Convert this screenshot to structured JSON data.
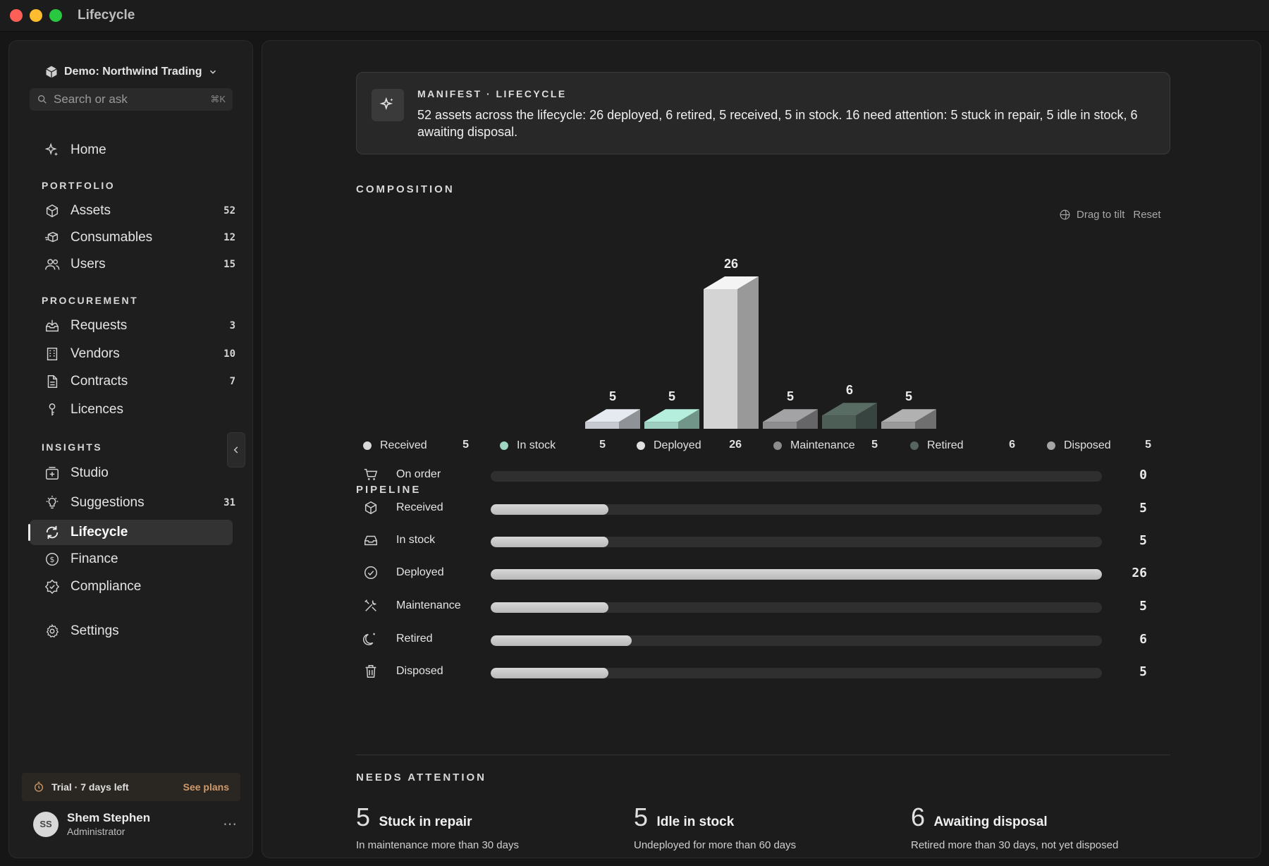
{
  "window": {
    "title": "Lifecycle"
  },
  "sidebar": {
    "org_name": "Demo: Northwind Trading",
    "search": {
      "placeholder": "Search or ask",
      "shortcut": "⌘K"
    },
    "home": {
      "label": "Home"
    },
    "sections": {
      "portfolio": "PORTFOLIO",
      "procurement": "PROCUREMENT",
      "insights": "INSIGHTS"
    },
    "items": {
      "assets": {
        "label": "Assets",
        "count": "52"
      },
      "consumables": {
        "label": "Consumables",
        "count": "12"
      },
      "users": {
        "label": "Users",
        "count": "15"
      },
      "requests": {
        "label": "Requests",
        "count": "3"
      },
      "vendors": {
        "label": "Vendors",
        "count": "10"
      },
      "contracts": {
        "label": "Contracts",
        "count": "7"
      },
      "licences": {
        "label": "Licences"
      },
      "studio": {
        "label": "Studio"
      },
      "suggestions": {
        "label": "Suggestions",
        "count": "31"
      },
      "lifecycle": {
        "label": "Lifecycle"
      },
      "finance": {
        "label": "Finance"
      },
      "compliance": {
        "label": "Compliance"
      },
      "settings": {
        "label": "Settings"
      }
    },
    "trial": {
      "text": "Trial · 7 days left",
      "link": "See plans"
    },
    "user": {
      "initials": "SS",
      "name": "Shem Stephen",
      "role": "Administrator"
    }
  },
  "manifest": {
    "label": "MANIFEST · LIFECYCLE",
    "text": "52 assets across the lifecycle: 26 deployed, 6 retired, 5 received, 5 in stock. 16 need attention: 5 stuck in repair, 5 idle in stock, 6 awaiting disposal."
  },
  "composition": {
    "title": "COMPOSITION",
    "tilt_label": "Drag to tilt",
    "reset_label": "Reset"
  },
  "chart_data": {
    "type": "bar",
    "categories": [
      "Received",
      "In stock",
      "Deployed",
      "Maintenance",
      "Retired",
      "Disposed"
    ],
    "values": [
      5,
      5,
      26,
      5,
      6,
      5
    ],
    "colors": [
      "#c7cbd1",
      "#9ecfc0",
      "#d4d4d4",
      "#8e8e90",
      "#4d5e57",
      "#9a9a9a"
    ],
    "legend_colors": [
      "#d9d9d9",
      "#9ed6c4",
      "#e0e0e0",
      "#8c8c8c",
      "#55665f",
      "#a5a5a5"
    ],
    "style": "3d-isometric"
  },
  "pipeline": {
    "title": "PIPELINE",
    "max": 26,
    "rows": [
      {
        "label": "On order",
        "value": 0,
        "icon": "cart-icon"
      },
      {
        "label": "Received",
        "value": 5,
        "icon": "box-icon"
      },
      {
        "label": "In stock",
        "value": 5,
        "icon": "inbox-icon"
      },
      {
        "label": "Deployed",
        "value": 26,
        "icon": "check-circle-icon"
      },
      {
        "label": "Maintenance",
        "value": 5,
        "icon": "tools-icon"
      },
      {
        "label": "Retired",
        "value": 6,
        "icon": "moon-icon"
      },
      {
        "label": "Disposed",
        "value": 5,
        "icon": "trash-icon"
      }
    ]
  },
  "needs_attention": {
    "title": "NEEDS ATTENTION",
    "cards": [
      {
        "count": "5",
        "title": "Stuck in repair",
        "desc": "In maintenance more than 30 days"
      },
      {
        "count": "5",
        "title": "Idle in stock",
        "desc": "Undeployed for more than 60 days"
      },
      {
        "count": "6",
        "title": "Awaiting disposal",
        "desc": "Retired more than 30 days, not yet disposed"
      }
    ]
  }
}
